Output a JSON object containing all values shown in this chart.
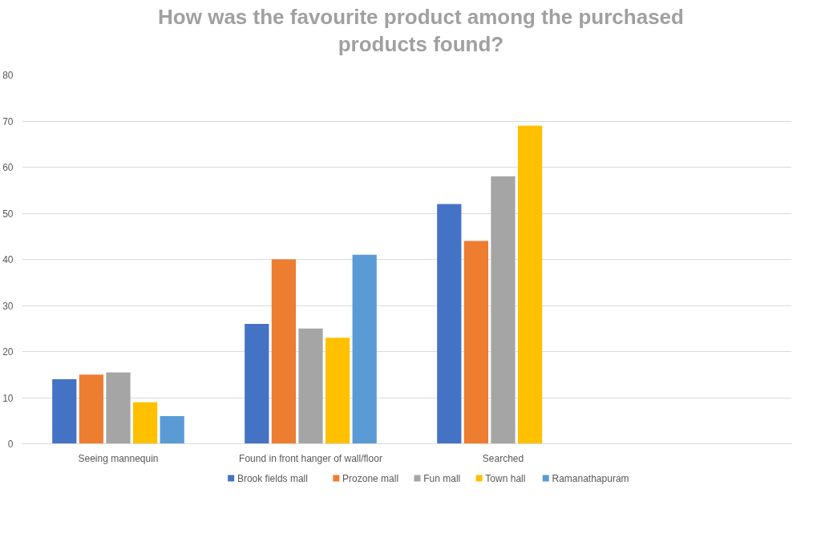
{
  "chart_data": {
    "type": "bar",
    "title": "How was the favourite product among the purchased products found?",
    "categories": [
      "Seeing mannequin",
      "Found in front hanger of wall/floor",
      "Searched",
      null
    ],
    "series": [
      {
        "name": "Brook fields mall",
        "color": "#4472c4",
        "values": [
          14,
          26,
          52,
          null
        ]
      },
      {
        "name": "Prozone mall",
        "color": "#ed7d31",
        "values": [
          15,
          40,
          44,
          null
        ]
      },
      {
        "name": "Fun mall",
        "color": "#a5a5a5",
        "values": [
          15.5,
          25,
          58,
          null
        ]
      },
      {
        "name": "Town hall",
        "color": "#ffc000",
        "values": [
          9,
          23,
          69,
          null
        ]
      },
      {
        "name": "Ramanathapuram",
        "color": "#5b9bd5",
        "values": [
          6,
          41,
          null,
          null
        ]
      }
    ],
    "ylim": [
      0,
      80
    ],
    "yticks": [
      0,
      10,
      20,
      30,
      40,
      50,
      60,
      70,
      80
    ],
    "grid": "y",
    "legend": "bottom"
  }
}
